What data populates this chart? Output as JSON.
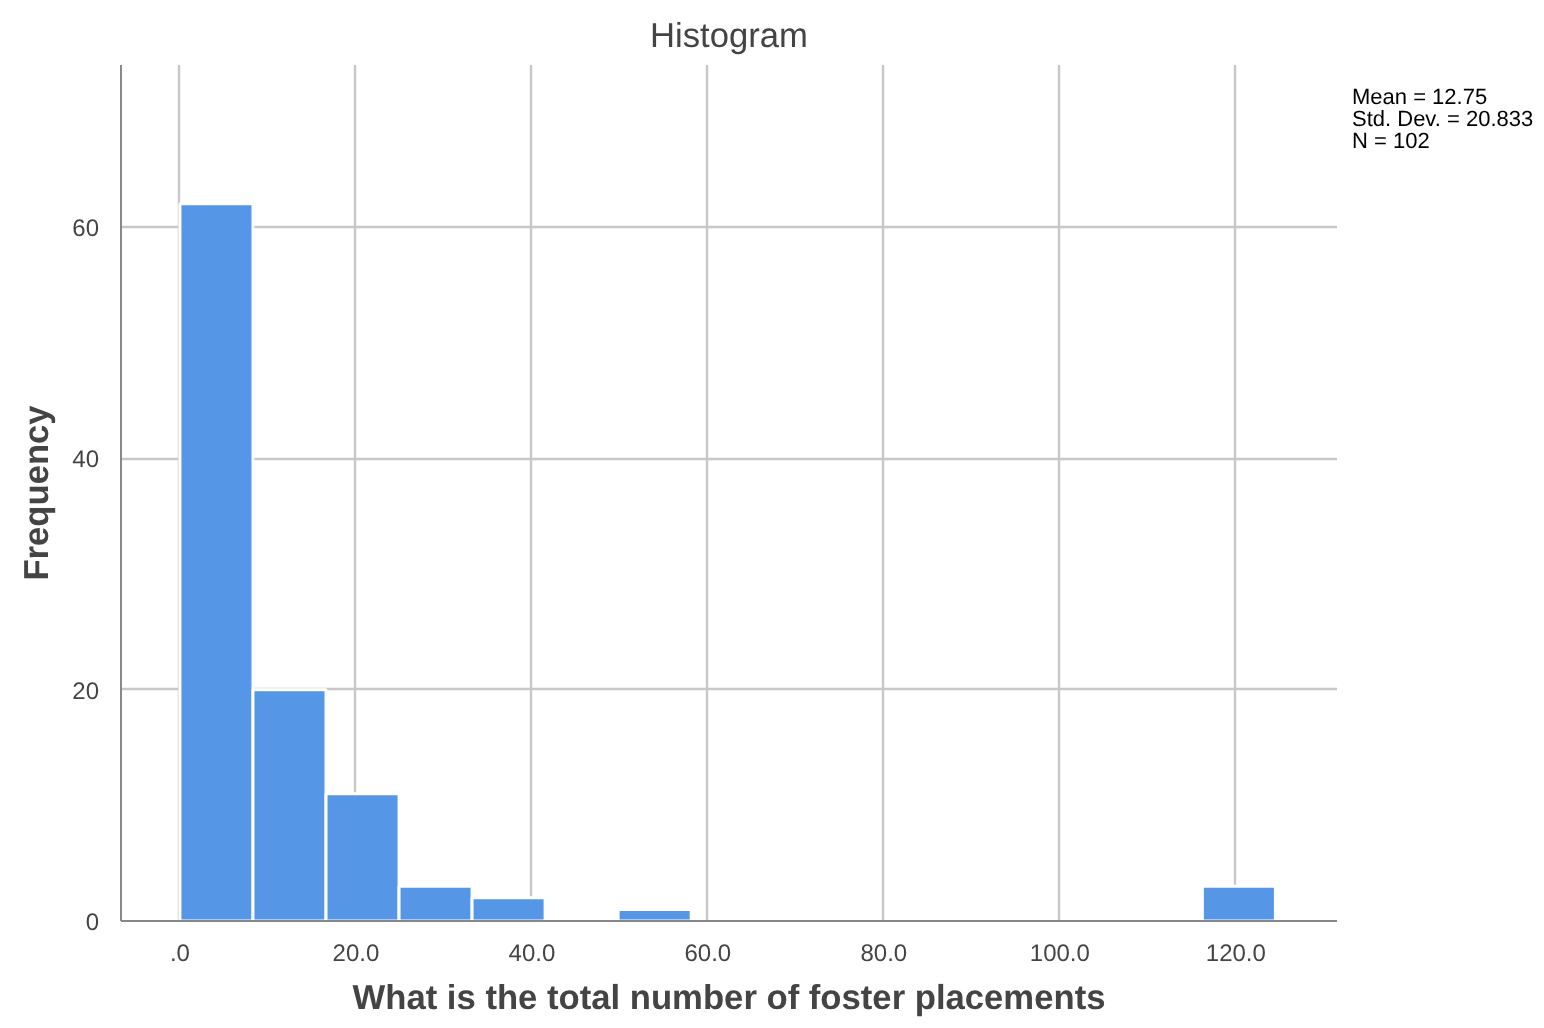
{
  "chart_data": {
    "type": "histogram",
    "title": "Histogram",
    "xlabel": "What is the total number of foster placements",
    "ylabel": "Frequency",
    "bins": [
      0,
      8.3,
      16.6,
      24.9,
      33.2,
      41.5,
      49.8,
      58.1,
      66.4,
      74.7,
      83.0,
      91.3,
      99.6,
      107.9,
      116.2,
      124.5
    ],
    "values": [
      62,
      20,
      11,
      3,
      2,
      0,
      1,
      0,
      0,
      0,
      0,
      0,
      0,
      0,
      3
    ],
    "color": "#5596e6",
    "xlim": [
      -6.7,
      131.5
    ],
    "ylim": [
      0,
      74
    ],
    "xticks": [
      {
        "value": 0,
        "label": ".0"
      },
      {
        "value": 20,
        "label": "20.0"
      },
      {
        "value": 40,
        "label": "40.0"
      },
      {
        "value": 60,
        "label": "60.0"
      },
      {
        "value": 80,
        "label": "80.0"
      },
      {
        "value": 100,
        "label": "100.0"
      },
      {
        "value": 120,
        "label": "120.0"
      }
    ],
    "yticks": [
      0,
      20,
      40,
      60
    ],
    "grid": true,
    "annotations": [
      "Mean = 12.75",
      "Std. Dev. = 20.833",
      "N = 102"
    ]
  }
}
